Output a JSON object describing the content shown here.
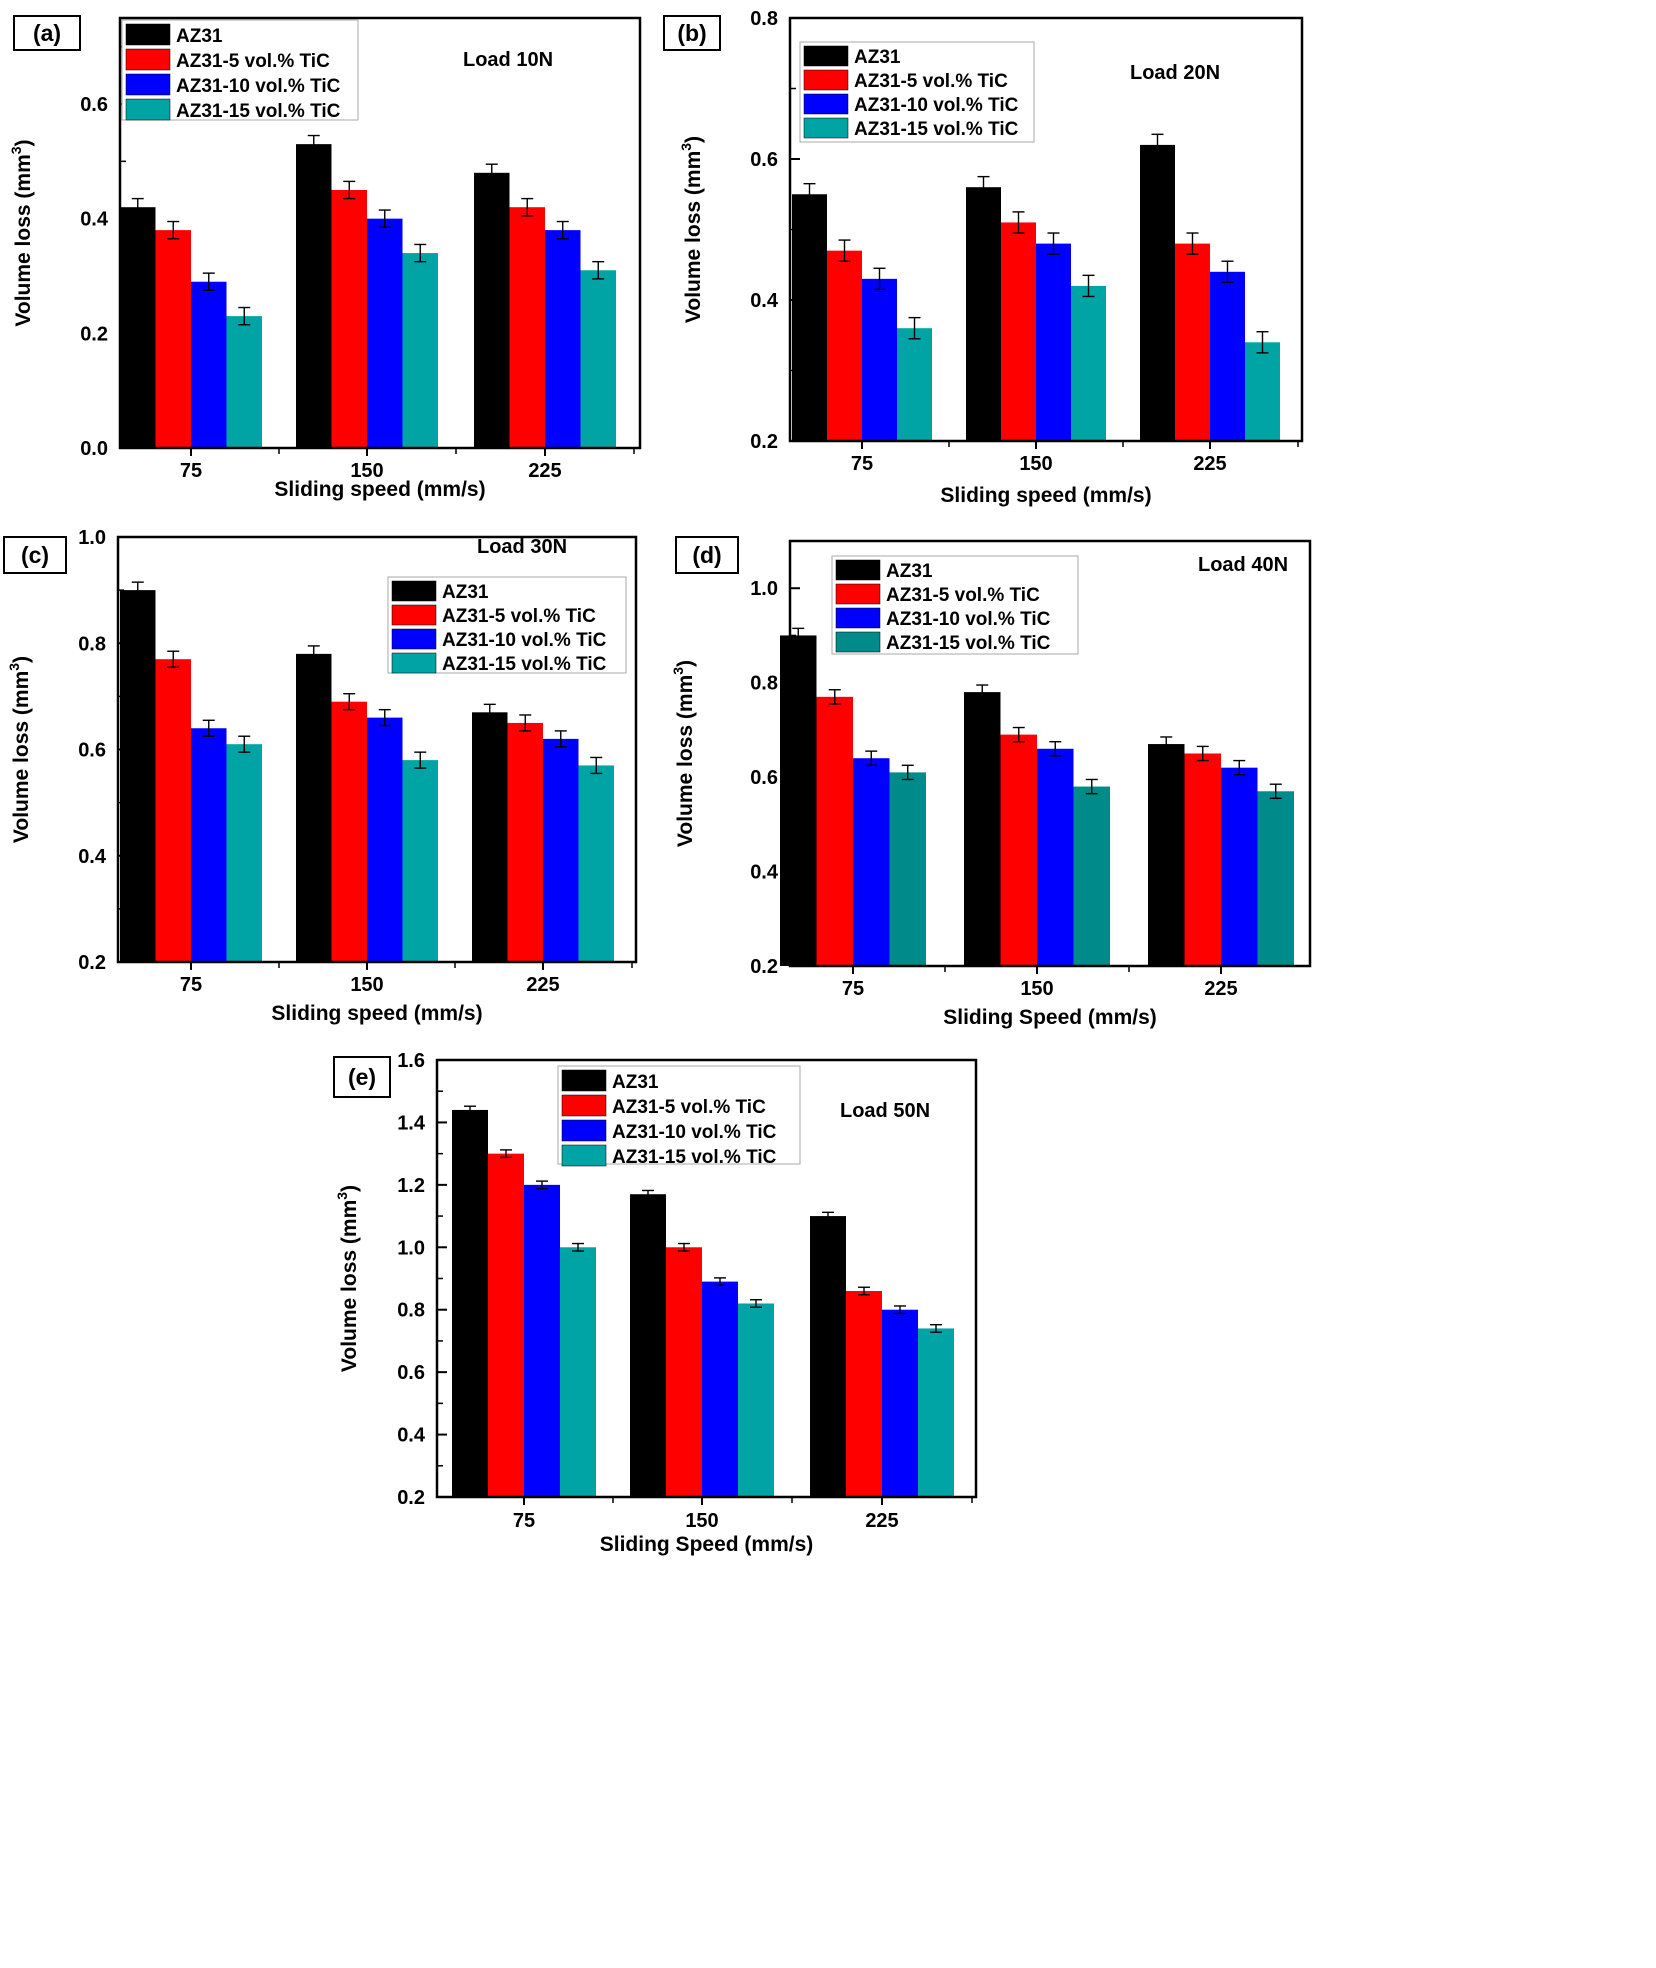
{
  "chart_data": [
    {
      "panel": "(a)",
      "type": "bar",
      "title": "",
      "annotation": "Load 10N",
      "xlabel": "Sliding speed (mm/s)",
      "ylabel": "Volume loss (mm",
      "ylabel_sup": "3",
      "ylabel_close": ")",
      "ylim": [
        0.0,
        0.75
      ],
      "yticks": [
        "0.0",
        "0.2",
        "0.4",
        "0.6"
      ],
      "ytick_values": [
        0.0,
        0.2,
        0.4,
        0.6
      ],
      "categories": [
        "75",
        "150",
        "225"
      ],
      "legend_position": "top-left",
      "series": [
        {
          "name": "AZ31",
          "values": [
            0.42,
            0.53,
            0.48
          ],
          "errors": [
            0.015,
            0.015,
            0.015
          ]
        },
        {
          "name": "AZ31-5 vol.% TiC",
          "values": [
            0.38,
            0.45,
            0.42
          ],
          "errors": [
            0.015,
            0.015,
            0.015
          ]
        },
        {
          "name": "AZ31-10 vol.% TiC",
          "values": [
            0.29,
            0.4,
            0.38
          ],
          "errors": [
            0.015,
            0.015,
            0.015
          ]
        },
        {
          "name": "AZ31-15 vol.% TiC",
          "values": [
            0.23,
            0.34,
            0.31
          ],
          "errors": [
            0.015,
            0.015,
            0.015
          ]
        }
      ]
    },
    {
      "panel": "(b)",
      "type": "bar",
      "title": "",
      "annotation": "Load 20N",
      "xlabel": "Sliding speed (mm/s)",
      "ylabel": "Volume loss (mm",
      "ylabel_sup": "3",
      "ylabel_close": ")",
      "ylim": [
        0.2,
        0.8
      ],
      "yticks": [
        "0.2",
        "0.4",
        "0.6",
        "0.8"
      ],
      "ytick_values": [
        0.2,
        0.4,
        0.6,
        0.8
      ],
      "categories": [
        "75",
        "150",
        "225"
      ],
      "legend_position": "top-left",
      "series": [
        {
          "name": "AZ31",
          "values": [
            0.55,
            0.56,
            0.62
          ],
          "errors": [
            0.015,
            0.015,
            0.015
          ]
        },
        {
          "name": "AZ31-5 vol.% TiC",
          "values": [
            0.47,
            0.51,
            0.48
          ],
          "errors": [
            0.015,
            0.015,
            0.015
          ]
        },
        {
          "name": "AZ31-10 vol.% TiC",
          "values": [
            0.43,
            0.48,
            0.44
          ],
          "errors": [
            0.015,
            0.015,
            0.015
          ]
        },
        {
          "name": "AZ31-15 vol.% TiC",
          "values": [
            0.36,
            0.42,
            0.34
          ],
          "errors": [
            0.015,
            0.015,
            0.015
          ]
        }
      ]
    },
    {
      "panel": "(c)",
      "type": "bar",
      "title": "",
      "annotation": "Load 30N",
      "xlabel": "Sliding speed (mm/s)",
      "ylabel": "Volume loss (mm",
      "ylabel_sup": "3",
      "ylabel_close": ")",
      "ylim": [
        0.2,
        1.0
      ],
      "yticks": [
        "0.2",
        "0.4",
        "0.6",
        "0.8",
        "1.0"
      ],
      "ytick_values": [
        0.2,
        0.4,
        0.6,
        0.8,
        1.0
      ],
      "categories": [
        "75",
        "150",
        "225"
      ],
      "legend_position": "top-right",
      "series": [
        {
          "name": "AZ31",
          "values": [
            0.9,
            0.78,
            0.67
          ],
          "errors": [
            0.015,
            0.015,
            0.015
          ]
        },
        {
          "name": "AZ31-5 vol.% TiC",
          "values": [
            0.77,
            0.69,
            0.65
          ],
          "errors": [
            0.015,
            0.015,
            0.015
          ]
        },
        {
          "name": "AZ31-10 vol.% TiC",
          "values": [
            0.64,
            0.66,
            0.62
          ],
          "errors": [
            0.015,
            0.015,
            0.015
          ]
        },
        {
          "name": "AZ31-15 vol.% TiC",
          "values": [
            0.61,
            0.58,
            0.57
          ],
          "errors": [
            0.015,
            0.015,
            0.015
          ]
        }
      ]
    },
    {
      "panel": "(d)",
      "type": "bar",
      "title": "",
      "annotation": "Load 40N",
      "xlabel": "Sliding Speed (mm/s)",
      "ylabel": "Volume loss (mm",
      "ylabel_sup": "3",
      "ylabel_close": ")",
      "ylim": [
        0.2,
        1.1
      ],
      "yticks": [
        "0.2",
        "0.4",
        "0.6",
        "0.8",
        "1.0"
      ],
      "ytick_values": [
        0.2,
        0.4,
        0.6,
        0.8,
        1.0
      ],
      "categories": [
        "75",
        "150",
        "225"
      ],
      "legend_position": "top-left",
      "series": [
        {
          "name": "AZ31",
          "values": [
            0.9,
            0.78,
            0.67
          ],
          "errors": [
            0.015,
            0.015,
            0.015
          ]
        },
        {
          "name": "AZ31-5 vol.% TiC",
          "values": [
            0.77,
            0.69,
            0.65
          ],
          "errors": [
            0.015,
            0.015,
            0.015
          ]
        },
        {
          "name": "AZ31-10 vol.% TiC",
          "values": [
            0.64,
            0.66,
            0.62
          ],
          "errors": [
            0.015,
            0.015,
            0.015
          ]
        },
        {
          "name": "AZ31-15 vol.% TiC",
          "values": [
            0.61,
            0.58,
            0.57
          ],
          "errors": [
            0.015,
            0.015,
            0.015
          ]
        }
      ]
    },
    {
      "panel": "(e)",
      "type": "bar",
      "title": "",
      "annotation": "Load 50N",
      "xlabel": "Sliding Speed (mm/s)",
      "ylabel": "Volume loss (mm",
      "ylabel_sup": "3",
      "ylabel_close": ")",
      "ylim": [
        0.2,
        1.6
      ],
      "yticks": [
        "0.2",
        "0.4",
        "0.6",
        "0.8",
        "1.0",
        "1.2",
        "1.4",
        "1.6"
      ],
      "ytick_values": [
        0.2,
        0.4,
        0.6,
        0.8,
        1.0,
        1.2,
        1.4,
        1.6
      ],
      "categories": [
        "75",
        "150",
        "225"
      ],
      "legend_position": "top-left",
      "series": [
        {
          "name": "AZ31",
          "values": [
            1.44,
            1.17,
            1.1
          ],
          "errors": [
            0.012,
            0.012,
            0.012
          ]
        },
        {
          "name": "AZ31-5 vol.% TiC",
          "values": [
            1.3,
            1.0,
            0.86
          ],
          "errors": [
            0.012,
            0.012,
            0.012
          ]
        },
        {
          "name": "AZ31-10 vol.% TiC",
          "values": [
            1.2,
            0.89,
            0.8
          ],
          "errors": [
            0.012,
            0.012,
            0.012
          ]
        },
        {
          "name": "AZ31-15 vol.% TiC",
          "values": [
            1.0,
            0.82,
            0.74
          ],
          "errors": [
            0.012,
            0.012,
            0.012
          ]
        }
      ]
    }
  ],
  "colors": {
    "series": [
      "#000000",
      "#ff0000",
      "#0000ff",
      "#00a4a4"
    ],
    "series_d": [
      "#000000",
      "#ff0000",
      "#0000ff",
      "#008b8b"
    ],
    "axis": "#000000",
    "background": "#ffffff"
  }
}
